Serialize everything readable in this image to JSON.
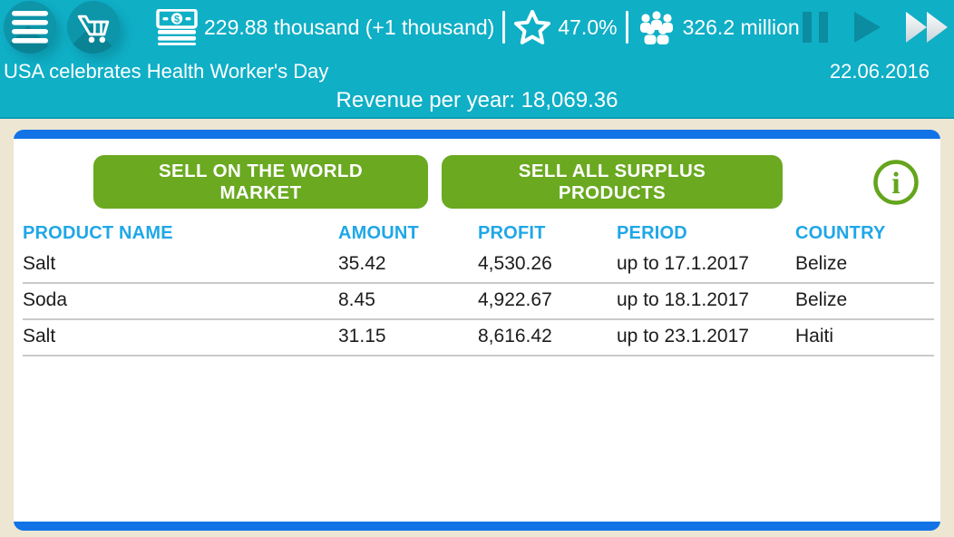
{
  "topbar": {
    "money_text": "229.88 thousand (+1 thousand)",
    "rating_text": "47.0%",
    "population_text": "326.2 million",
    "news_text": "USA celebrates Health Worker's Day",
    "date_text": "22.06.2016",
    "revenue_text": "Revenue per year: 18,069.36"
  },
  "panel": {
    "buttons": {
      "sell_world_label": "SELL ON THE WORLD MARKET",
      "sell_surplus_label": "SELL ALL SURPLUS PRODUCTS"
    },
    "table": {
      "headers": [
        "PRODUCT NAME",
        "AMOUNT",
        "PROFIT",
        "PERIOD",
        "COUNTRY"
      ],
      "rows": [
        [
          "Salt",
          "35.42",
          "4,530.26",
          "up to 17.1.2017",
          "Belize"
        ],
        [
          "Soda",
          "8.45",
          "4,922.67",
          "up to 18.1.2017",
          "Belize"
        ],
        [
          "Salt",
          "31.15",
          "8,616.42",
          "up to 23.1.2017",
          "Haiti"
        ]
      ]
    }
  },
  "colors": {
    "header_teal": "#0FAFC6",
    "circle_teal": "#0D95A9",
    "speed_icon_teal": "#0C8CA0",
    "panel_blue": "#1173E5",
    "table_header_blue": "#1FA7E7",
    "button_green": "#6AA920",
    "background_beige": "#EDE6D3"
  }
}
